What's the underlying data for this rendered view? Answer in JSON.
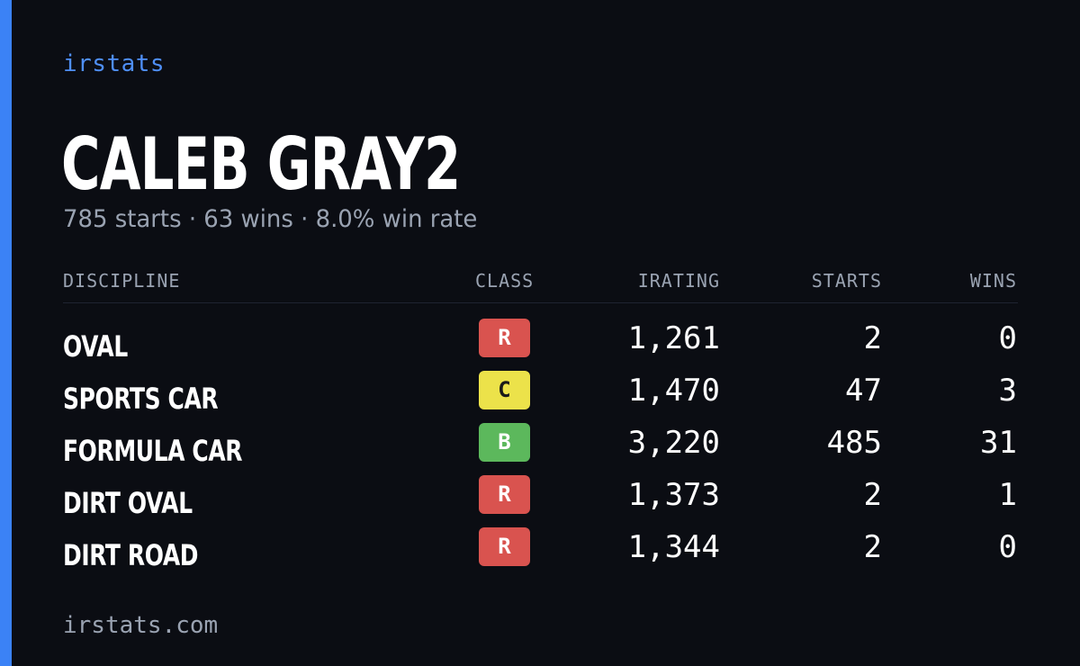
{
  "brand": "irstats",
  "driver": {
    "name": "CALEB GRAY2",
    "summary": "785 starts · 63 wins · 8.0% win rate"
  },
  "table": {
    "headers": {
      "discipline": "DISCIPLINE",
      "class": "CLASS",
      "irating": "IRATING",
      "starts": "STARTS",
      "wins": "WINS"
    },
    "rows": [
      {
        "discipline": "OVAL",
        "class": "R",
        "class_color": "#d9534f",
        "class_text_color": "#ffffff",
        "irating": "1,261",
        "starts": "2",
        "wins": "0"
      },
      {
        "discipline": "SPORTS CAR",
        "class": "C",
        "class_color": "#ece24a",
        "class_text_color": "#1a1a1a",
        "irating": "1,470",
        "starts": "47",
        "wins": "3"
      },
      {
        "discipline": "FORMULA CAR",
        "class": "B",
        "class_color": "#5cb85c",
        "class_text_color": "#ffffff",
        "irating": "3,220",
        "starts": "485",
        "wins": "31"
      },
      {
        "discipline": "DIRT OVAL",
        "class": "R",
        "class_color": "#d9534f",
        "class_text_color": "#ffffff",
        "irating": "1,373",
        "starts": "2",
        "wins": "1"
      },
      {
        "discipline": "DIRT ROAD",
        "class": "R",
        "class_color": "#d9534f",
        "class_text_color": "#ffffff",
        "irating": "1,344",
        "starts": "2",
        "wins": "0"
      }
    ]
  },
  "footer": "irstats.com",
  "colors": {
    "background": "#0b0d13",
    "accent": "#3b82f6",
    "muted_text": "#9aa3b2"
  }
}
